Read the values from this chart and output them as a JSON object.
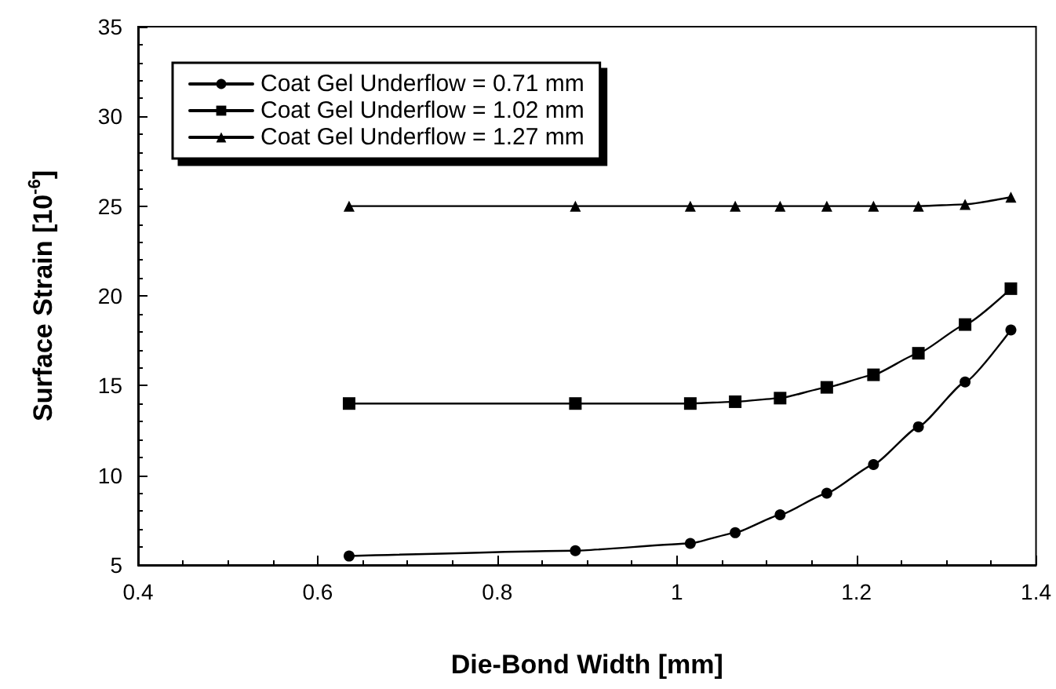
{
  "chart_data": {
    "type": "line",
    "xlabel": "Die-Bond Width [mm]",
    "ylabel": "Surface Strain [10$^{-6}$]",
    "xlim": [
      0.4,
      1.4
    ],
    "xticks": [
      0.4,
      0.6,
      0.8,
      1,
      1.2,
      1.4
    ],
    "ylim": [
      5,
      35
    ],
    "yticks": [
      5,
      10,
      15,
      20,
      25,
      30,
      35
    ],
    "grid": false,
    "legend": "top left",
    "line_style": "solid",
    "series": [
      {
        "name": "Coat Gel Underflow = 0.71 mm",
        "color": "#000000",
        "marker": "circle",
        "x": [
          0.635,
          0.887,
          1.015,
          1.065,
          1.115,
          1.167,
          1.219,
          1.269,
          1.321,
          1.372
        ],
        "values": [
          5.5,
          5.8,
          6.2,
          6.8,
          7.8,
          9.0,
          10.6,
          12.7,
          15.2,
          18.1
        ]
      },
      {
        "name": "Coat Gel Underflow = 1.02 mm",
        "color": "#000000",
        "marker": "square",
        "x": [
          0.635,
          0.887,
          1.015,
          1.065,
          1.115,
          1.167,
          1.219,
          1.269,
          1.321,
          1.372
        ],
        "values": [
          14.0,
          14.0,
          14.0,
          14.1,
          14.3,
          14.9,
          15.6,
          16.8,
          18.4,
          20.4
        ]
      },
      {
        "name": "Coat Gel Underflow = 1.27 mm",
        "color": "#000000",
        "marker": "triangle",
        "x": [
          0.635,
          0.887,
          1.015,
          1.065,
          1.115,
          1.167,
          1.219,
          1.269,
          1.321,
          1.372
        ],
        "values": [
          25,
          25,
          25,
          25,
          25,
          25,
          25,
          25,
          25.1,
          25.5
        ]
      }
    ]
  }
}
